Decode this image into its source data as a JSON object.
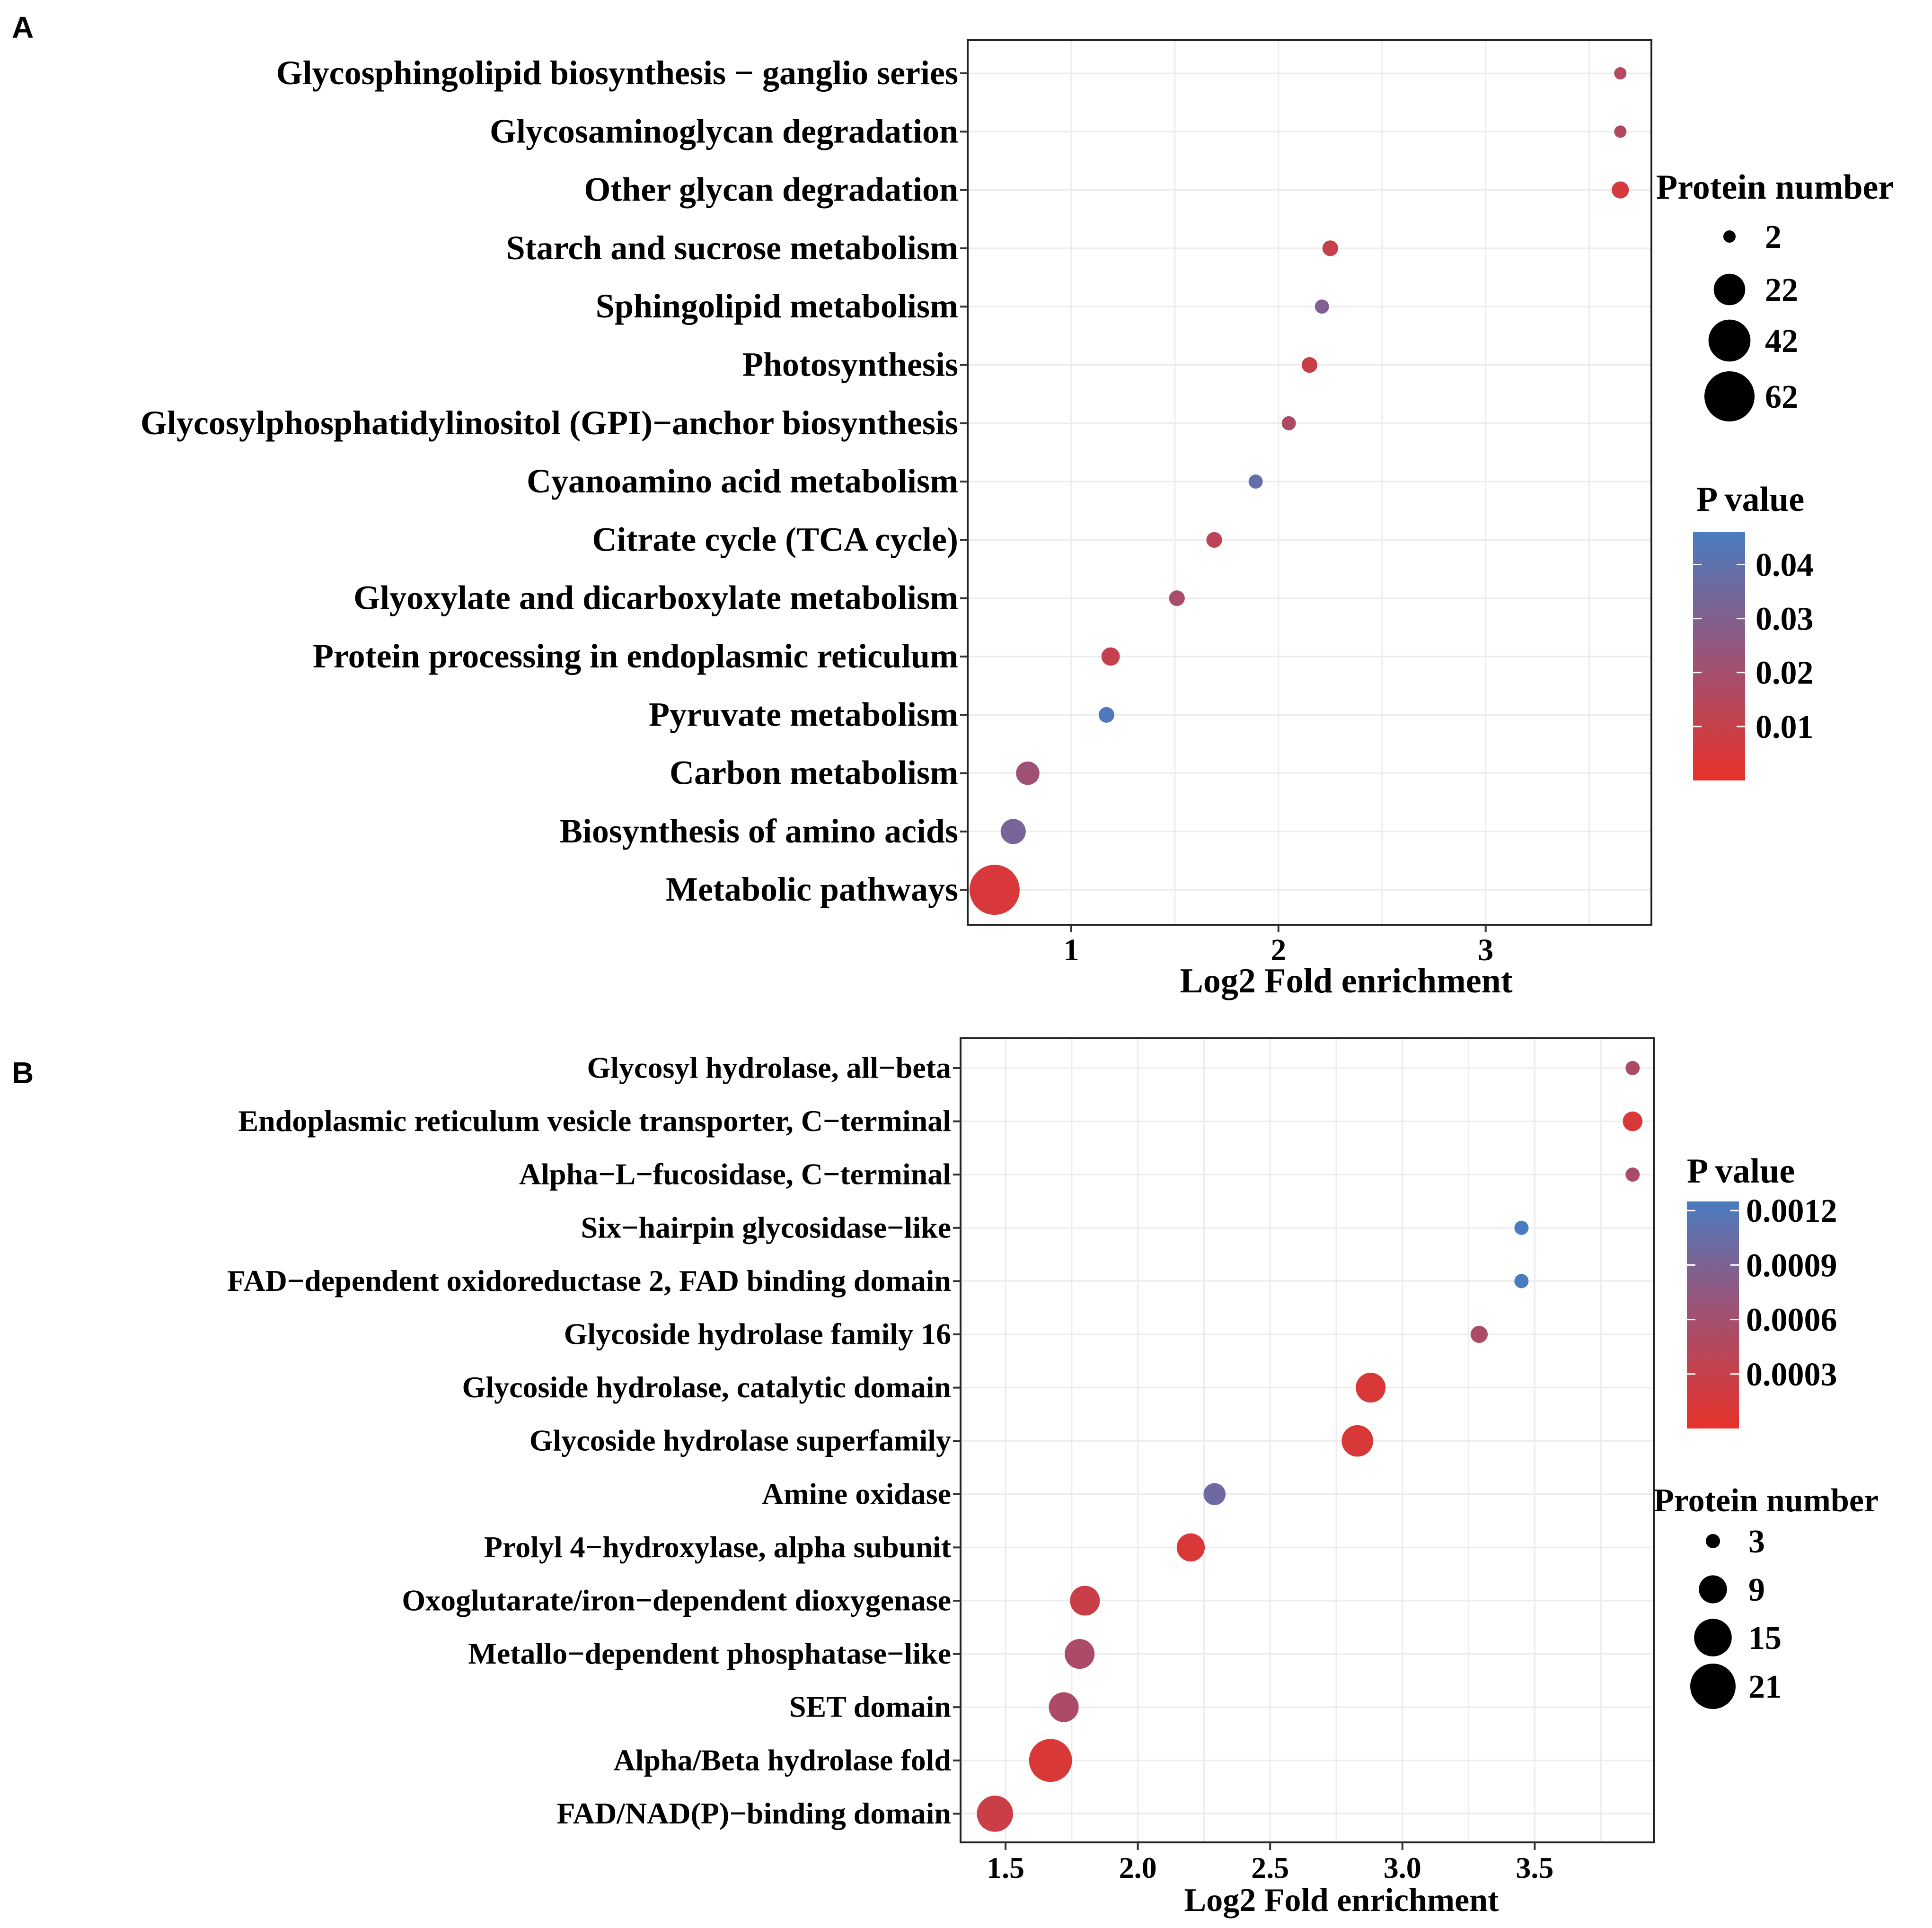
{
  "chart_data": [
    {
      "panel": "A",
      "type": "scatter",
      "title": "",
      "xlabel": "Log2 Fold enrichment",
      "ylabel": "",
      "xlim": [
        0.5,
        3.8
      ],
      "xticks": [
        "1",
        "2",
        "3"
      ],
      "xtick_values": [
        1,
        2,
        3
      ],
      "grid": true,
      "categories": [
        "Glycosphingolipid biosynthesis − ganglio series",
        "Glycosaminoglycan degradation",
        "Other glycan degradation",
        "Starch and sucrose metabolism",
        "Sphingolipid metabolism",
        "Photosynthesis",
        "Glycosylphosphatidylinositol (GPI)−anchor biosynthesis",
        "Cyanoamino acid metabolism",
        "Citrate cycle (TCA cycle)",
        "Glyoxylate and dicarboxylate metabolism",
        "Protein processing in endoplasmic reticulum",
        "Pyruvate metabolism",
        "Carbon metabolism",
        "Biosynthesis of amino acids",
        "Metabolic pathways"
      ],
      "x": [
        3.65,
        3.65,
        3.65,
        2.25,
        2.21,
        2.15,
        2.05,
        1.89,
        1.69,
        1.51,
        1.19,
        1.17,
        0.79,
        0.72,
        0.63
      ],
      "size": [
        2,
        2,
        5,
        4,
        3,
        4,
        3,
        3,
        4,
        4,
        6,
        4,
        11,
        13,
        62
      ],
      "color": [
        0.013,
        0.013,
        0.005,
        0.008,
        0.027,
        0.008,
        0.015,
        0.037,
        0.011,
        0.016,
        0.009,
        0.044,
        0.018,
        0.03,
        0.004
      ],
      "size_legend": {
        "title": "Protein number",
        "values": [
          2,
          22,
          42,
          62
        ],
        "labels": [
          "2",
          "22",
          "42",
          "62"
        ]
      },
      "color_legend": {
        "title": "P value",
        "min": 0.0,
        "max": 0.046,
        "ticks": [
          0.04,
          0.03,
          0.02,
          0.01
        ],
        "tick_labels": [
          "0.04",
          "0.03",
          "0.02",
          "0.01"
        ],
        "low_color": "#e8312a",
        "high_color": "#4a7cc0",
        "mid_color": "#8a5a88"
      }
    },
    {
      "panel": "B",
      "type": "scatter",
      "title": "",
      "xlabel": "Log2 Fold enrichment",
      "ylabel": "",
      "xlim": [
        1.33,
        3.95
      ],
      "xticks": [
        "1.5",
        "2.0",
        "2.5",
        "3.0",
        "3.5"
      ],
      "xtick_values": [
        1.5,
        2.0,
        2.5,
        3.0,
        3.5
      ],
      "grid": true,
      "categories": [
        "Glycosyl hydrolase, all−beta",
        "Endoplasmic reticulum vesicle transporter, C−terminal",
        "Alpha−L−fucosidase, C−terminal",
        "Six−hairpin glycosidase−like",
        "FAD−dependent oxidoreductase 2, FAD binding domain",
        "Glycoside hydrolase family 16",
        "Glycoside hydrolase, catalytic domain",
        "Glycoside hydrolase superfamily",
        "Amine oxidase",
        "Prolyl 4−hydroxylase, alpha subunit",
        "Oxoglutarate/iron−dependent dioxygenase",
        "Metallo−dependent phosphatase−like",
        "SET domain",
        "Alpha/Beta hydrolase fold",
        "FAD/NAD(P)−binding domain"
      ],
      "x": [
        3.87,
        3.87,
        3.87,
        3.45,
        3.45,
        3.29,
        2.88,
        2.83,
        2.29,
        2.2,
        1.8,
        1.78,
        1.72,
        1.67,
        1.46
      ],
      "size": [
        3,
        5,
        3,
        3,
        3,
        4,
        10,
        11,
        6,
        9,
        10,
        10,
        10,
        19,
        14
      ],
      "color": [
        0.0004,
        0.0001,
        0.0004,
        0.00125,
        0.00125,
        0.0004,
        0.0001,
        0.0001,
        0.0009,
        0.0001,
        0.0002,
        0.0004,
        0.0004,
        0.0001,
        0.0002
      ],
      "size_legend": {
        "title": "Protein number",
        "values": [
          3,
          9,
          15,
          21
        ],
        "labels": [
          "3",
          "9",
          "15",
          "21"
        ]
      },
      "color_legend": {
        "title": "P value",
        "min": 0.0,
        "max": 0.00125,
        "ticks": [
          0.0012,
          0.0009,
          0.0006,
          0.0003
        ],
        "tick_labels": [
          "0.0012",
          "0.0009",
          "0.0006",
          "0.0003"
        ],
        "low_color": "#e8312a",
        "high_color": "#4a7cc0",
        "mid_color": "#8a5a88"
      }
    }
  ]
}
